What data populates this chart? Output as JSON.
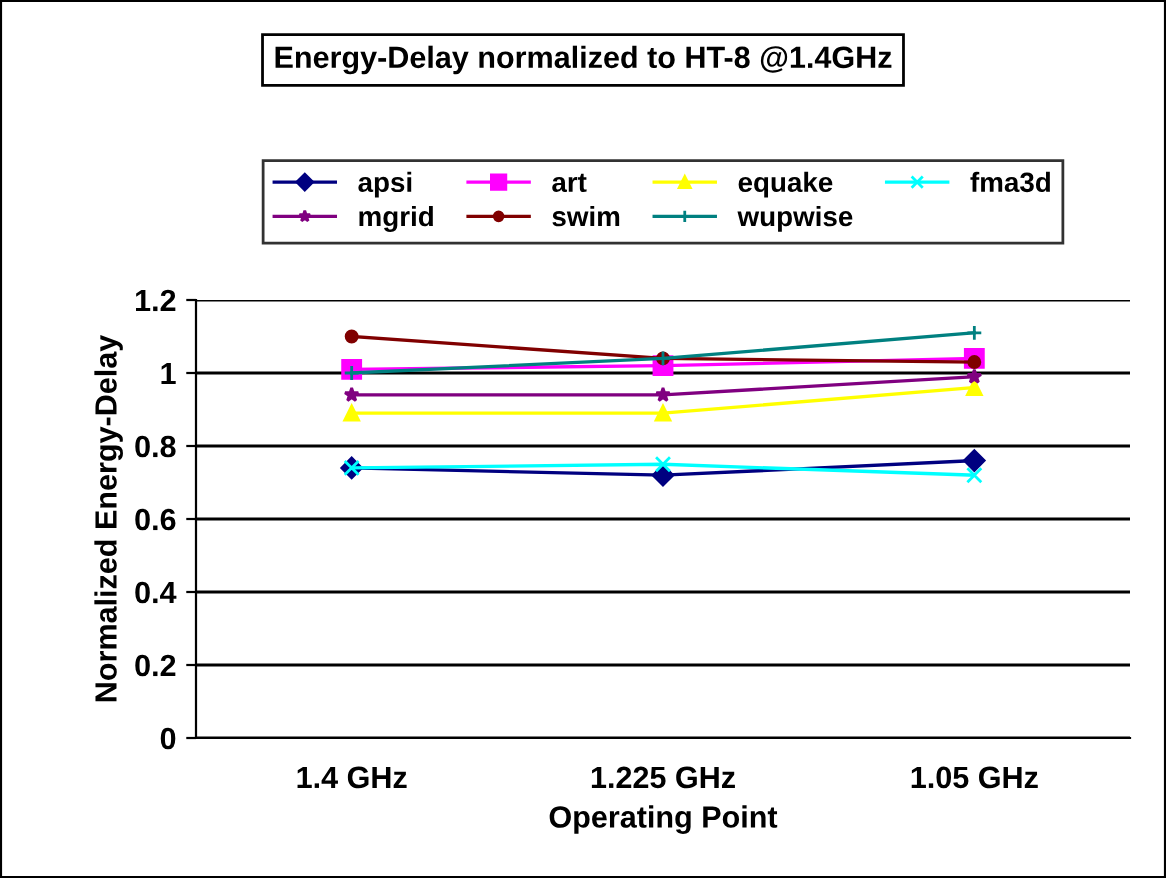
{
  "chart_data": {
    "type": "line",
    "title": "Energy-Delay normalized to HT-8 @1.4GHz",
    "xlabel": "Operating Point",
    "ylabel": "Normalized Energy-Delay",
    "categories": [
      "1.4 GHz",
      "1.225 GHz",
      "1.05 GHz"
    ],
    "series": [
      {
        "name": "apsi",
        "color": "#000080",
        "marker": "diamond",
        "values": [
          0.74,
          0.72,
          0.76
        ]
      },
      {
        "name": "art",
        "color": "#ff00ff",
        "marker": "square",
        "values": [
          1.01,
          1.02,
          1.04
        ]
      },
      {
        "name": "equake",
        "color": "#ffff00",
        "marker": "triangle",
        "values": [
          0.89,
          0.89,
          0.96
        ]
      },
      {
        "name": "fma3d",
        "color": "#00ffff",
        "marker": "cross",
        "values": [
          0.74,
          0.75,
          0.72
        ]
      },
      {
        "name": "mgrid",
        "color": "#800080",
        "marker": "star",
        "values": [
          0.94,
          0.94,
          0.99
        ]
      },
      {
        "name": "swim",
        "color": "#800000",
        "marker": "circle",
        "values": [
          1.1,
          1.04,
          1.03
        ]
      },
      {
        "name": "wupwise",
        "color": "#008080",
        "marker": "plus",
        "values": [
          1.0,
          1.04,
          1.11
        ]
      }
    ],
    "ylim": [
      0,
      1.2
    ],
    "yticks": [
      0,
      0.2,
      0.4,
      0.6,
      0.8,
      1,
      1.2
    ],
    "grid": "y",
    "legend": "top"
  }
}
